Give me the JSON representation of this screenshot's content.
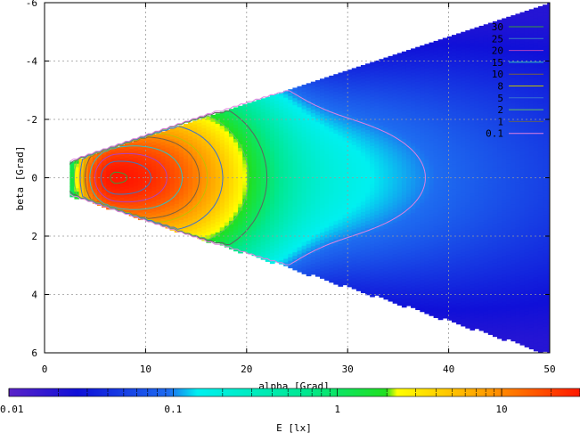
{
  "chart_data": {
    "type": "heatmap",
    "xlabel": "alpha [Grad]",
    "ylabel": "beta [Grad]",
    "xlim": [
      0,
      50
    ],
    "ylim": [
      6,
      -6
    ],
    "x_ticks": [
      "0",
      "10",
      "20",
      "30",
      "40",
      "50"
    ],
    "y_ticks": [
      "-6",
      "-4",
      "-2",
      "0",
      "2",
      "4",
      "6"
    ],
    "grid": true,
    "colorbar": {
      "label": "E [lx]",
      "scale": "log",
      "range": [
        0.01,
        30
      ],
      "ticks": [
        "0.01",
        "0.1",
        "1",
        "10"
      ]
    },
    "contour_levels": [
      {
        "name": "30",
        "color": "#3a9a3a"
      },
      {
        "name": "25",
        "color": "#3a7ac0"
      },
      {
        "name": "20",
        "color": "#b040c0"
      },
      {
        "name": "15",
        "color": "#30c0c0"
      },
      {
        "name": "10",
        "color": "#7a6040"
      },
      {
        "name": "8",
        "color": "#c0c000"
      },
      {
        "name": "5",
        "color": "#3a70d0"
      },
      {
        "name": "2",
        "color": "#60c060"
      },
      {
        "name": "1",
        "color": "#606060"
      },
      {
        "name": "0.1",
        "color": "#e080e0"
      }
    ],
    "field": {
      "peak_E": 30,
      "peak_alpha": 7,
      "peak_beta": 0,
      "alpha_start": 2.5,
      "alpha_end": 50
    }
  }
}
